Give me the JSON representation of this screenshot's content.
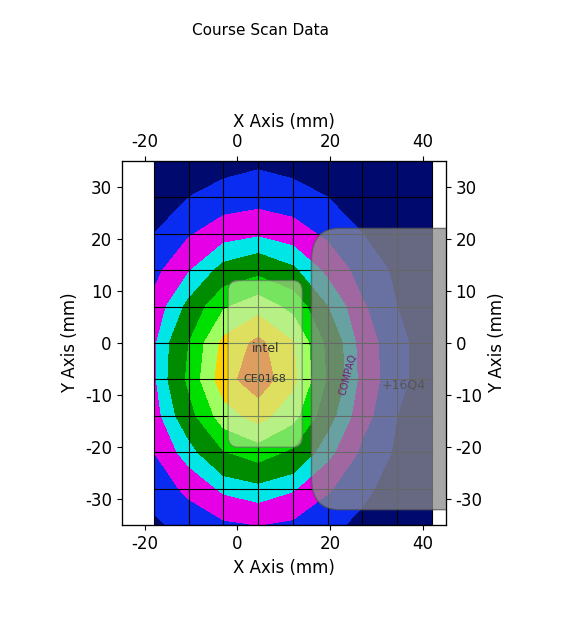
{
  "chart_data": {
    "type": "contour",
    "title": "Course Scan Data",
    "x_label": "X Axis (mm)",
    "y_label": "Y Axis (mm)",
    "xlim": [
      -25,
      45
    ],
    "ylim": [
      -35,
      35
    ],
    "xticks": [
      -20,
      0,
      20,
      40
    ],
    "yticks": [
      -30,
      -20,
      -10,
      0,
      10,
      20,
      30
    ],
    "x": [
      -18,
      -10.5,
      -3,
      4.5,
      12,
      19.5,
      27,
      34.5,
      42
    ],
    "y": [
      -35,
      -28,
      -21,
      -14,
      -7,
      0,
      7,
      14,
      21,
      28,
      35
    ],
    "cells": [
      [
        0.02,
        0.05,
        0.08,
        0.1,
        0.08,
        0.04,
        0.02,
        0.0,
        0.0
      ],
      [
        0.05,
        0.12,
        0.22,
        0.26,
        0.21,
        0.11,
        0.04,
        0.01,
        0.0
      ],
      [
        0.1,
        0.25,
        0.44,
        0.52,
        0.42,
        0.23,
        0.08,
        0.02,
        0.0
      ],
      [
        0.15,
        0.39,
        0.68,
        0.81,
        0.65,
        0.35,
        0.13,
        0.03,
        0.01
      ],
      [
        0.18,
        0.48,
        0.84,
        0.99,
        0.79,
        0.43,
        0.16,
        0.04,
        0.01
      ],
      [
        0.18,
        0.45,
        0.79,
        0.94,
        0.76,
        0.41,
        0.15,
        0.04,
        0.01
      ],
      [
        0.13,
        0.33,
        0.58,
        0.69,
        0.55,
        0.3,
        0.11,
        0.03,
        0.0
      ],
      [
        0.07,
        0.19,
        0.34,
        0.4,
        0.32,
        0.17,
        0.06,
        0.02,
        0.0
      ],
      [
        0.03,
        0.09,
        0.15,
        0.18,
        0.14,
        0.08,
        0.03,
        0.01,
        0.0
      ],
      [
        0.01,
        0.03,
        0.05,
        0.06,
        0.05,
        0.03,
        0.01,
        0.0,
        0.0
      ],
      [
        0.0,
        0.01,
        0.01,
        0.02,
        0.01,
        0.01,
        0.0,
        0.0,
        0.0
      ]
    ],
    "levels": [
      0,
      0.03,
      0.1,
      0.2,
      0.3,
      0.45,
      0.6,
      0.75,
      0.9,
      1.0
    ],
    "colors": [
      "#000A6E",
      "#0A2BF0",
      "#E600E6",
      "#00E5E5",
      "#008C00",
      "#00E000",
      "#A0FF60",
      "#FFD000",
      "#FF3000"
    ],
    "annotations": [
      "intel",
      "CE0168",
      "COMPAQ",
      "+16Q4"
    ]
  }
}
